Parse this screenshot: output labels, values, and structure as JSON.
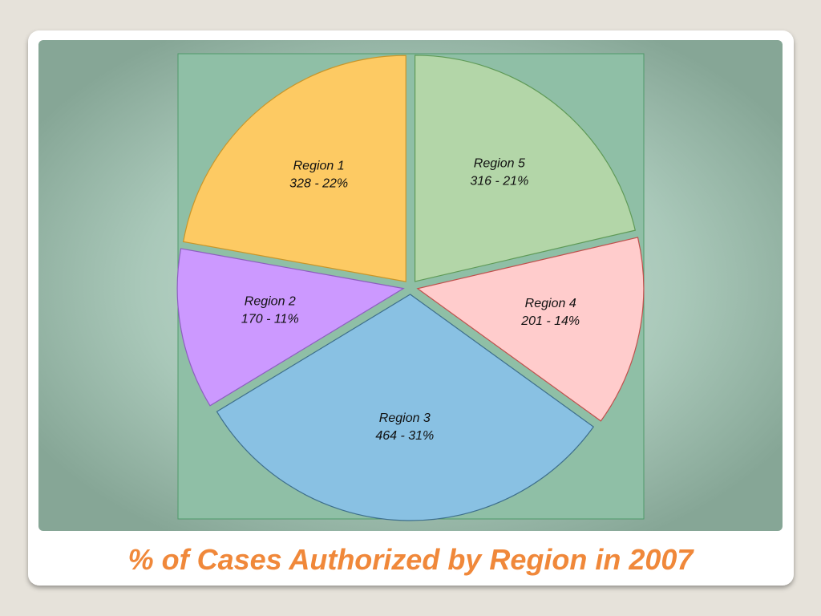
{
  "chart_data": {
    "type": "pie",
    "title": "% of Cases Authorized by Region in 2007",
    "categories": [
      "Region 1",
      "Region 2",
      "Region 3",
      "Region 4",
      "Region 5"
    ],
    "values": [
      328,
      170,
      464,
      201,
      316
    ],
    "value_labels": [
      "328 -  22%",
      "170 - 11%",
      "464 - 31%",
      "201 -  14%",
      "316 - 21%"
    ],
    "colors": [
      "#fdca63",
      "#cc99ff",
      "#89c1e3",
      "#ffcccc",
      "#b3d6a8"
    ],
    "stroke_colors": [
      "#c8962a",
      "#8d5fc0",
      "#3e6f8c",
      "#c0504d",
      "#5f9a57"
    ]
  }
}
